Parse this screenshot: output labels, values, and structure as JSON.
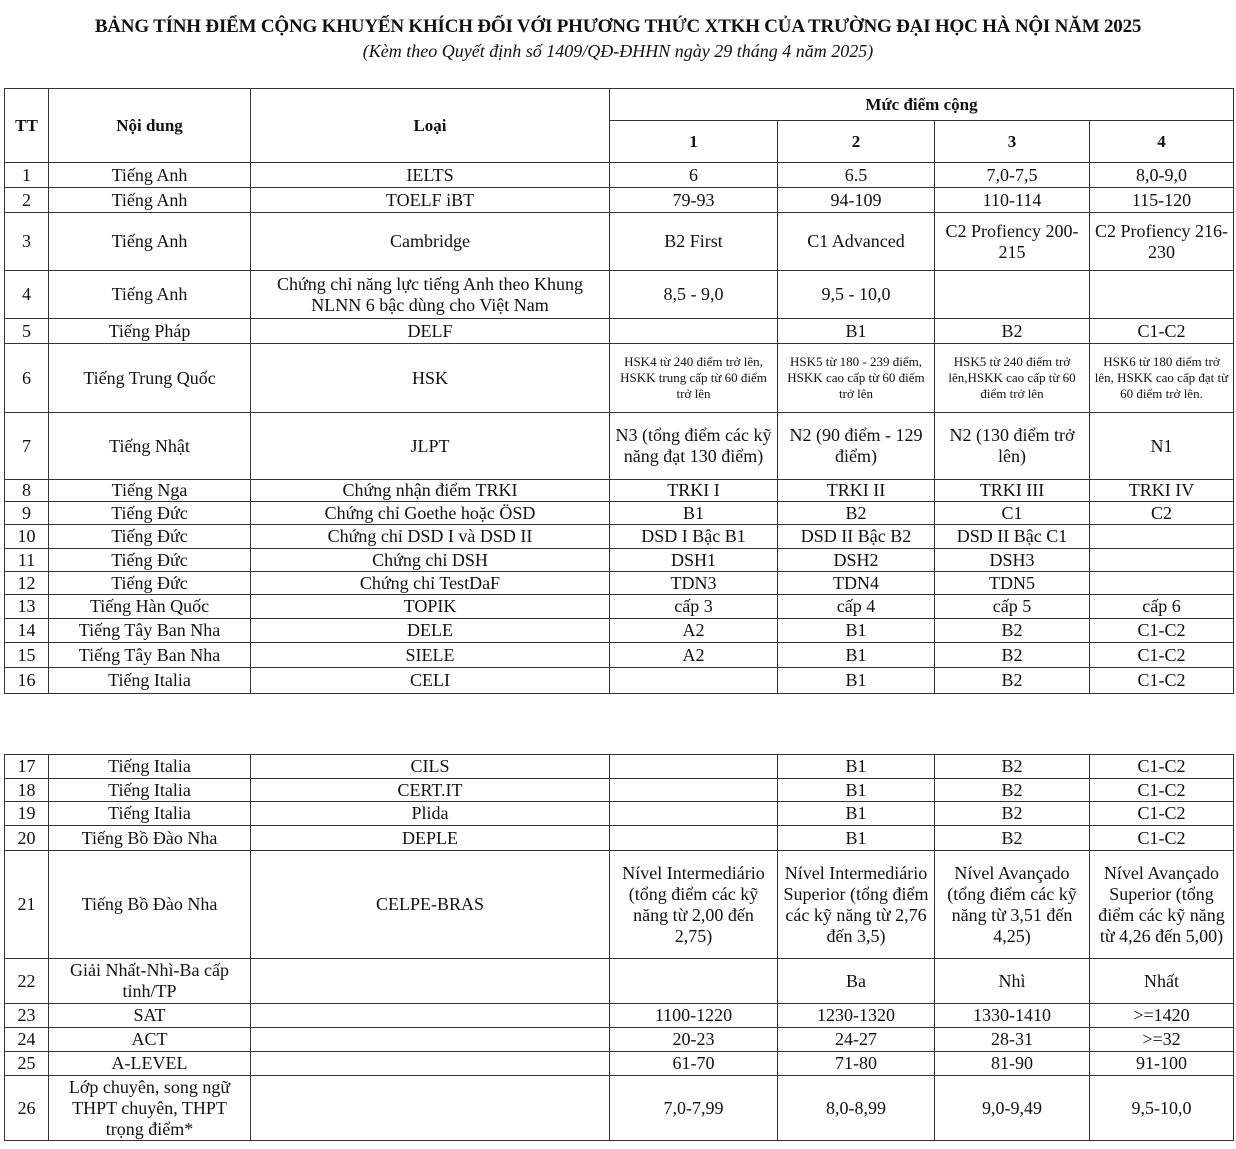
{
  "title": "BẢNG TÍNH ĐIỂM CỘNG KHUYẾN KHÍCH ĐỐI VỚI PHƯƠNG THỨC XTKH CỦA TRƯỜNG ĐẠI HỌC HÀ NỘI NĂM 2025",
  "subtitle": "(Kèm theo Quyết định số 1409/QĐ-ĐHHN ngày 29 tháng 4 năm 2025)",
  "header": {
    "tt": "TT",
    "noi_dung": "Nội dung",
    "loai": "Loại",
    "muc_diem_cong": "Mức điểm cộng",
    "levels": [
      "1",
      "2",
      "3",
      "4"
    ]
  },
  "table1": [
    [
      "1",
      "Tiếng Anh",
      "IELTS",
      "6",
      "6.5",
      "7,0-7,5",
      "8,0-9,0"
    ],
    [
      "2",
      "Tiếng Anh",
      "TOELF iBT",
      "79-93",
      "94-109",
      "110-114",
      "115-120"
    ],
    [
      "3",
      "Tiếng Anh",
      "Cambridge",
      "B2 First",
      "C1 Advanced",
      "C2 Profiency 200-215",
      "C2 Profiency 216-230"
    ],
    [
      "4",
      "Tiếng Anh",
      "Chứng chỉ năng lực tiếng Anh theo Khung NLNN 6 bậc dùng cho Việt Nam",
      "8,5 - 9,0",
      "9,5 - 10,0",
      "",
      ""
    ],
    [
      "5",
      "Tiếng Pháp",
      "DELF",
      "",
      "B1",
      "B2",
      "C1-C2"
    ],
    [
      "6",
      "Tiếng Trung Quốc",
      "HSK",
      "HSK4 từ 240 điểm trở lên, HSKK trung cấp từ 60 điểm trở lên",
      "HSK5 từ 180 - 239 điểm, HSKK cao cấp từ 60 điểm trở lên",
      "HSK5 từ 240 điểm trở lên,HSKK cao cấp từ 60 điểm trở lên",
      "HSK6 từ 180 điểm trở lên, HSKK cao cấp đạt từ 60 điểm trở lên."
    ],
    [
      "7",
      "Tiếng Nhật",
      "JLPT",
      "N3 (tổng điểm các kỹ năng đạt 130 điểm)",
      "N2 (90 điểm - 129 điểm)",
      "N2 (130 điểm trở lên)",
      "N1"
    ],
    [
      "8",
      "Tiếng Nga",
      "Chứng nhận điểm TRKI",
      "TRKI I",
      "TRKI II",
      "TRKI III",
      "TRKI IV"
    ],
    [
      "9",
      "Tiếng Đức",
      "Chứng chỉ  Goethe hoặc ÖSD",
      "B1",
      "B2",
      "C1",
      "C2"
    ],
    [
      "10",
      "Tiếng Đức",
      "Chứng chỉ DSD I và DSD II",
      "DSD I  Bậc B1",
      "DSD II  Bậc B2",
      "DSD II Bậc C1",
      ""
    ],
    [
      "11",
      "Tiếng Đức",
      "Chứng chỉ DSH",
      "DSH1",
      "DSH2",
      "DSH3",
      ""
    ],
    [
      "12",
      "Tiếng Đức",
      "Chứng chỉ TestDaF",
      "TDN3",
      "TDN4",
      "TDN5",
      ""
    ],
    [
      "13",
      "Tiếng Hàn Quốc",
      "TOPIK",
      "cấp 3",
      "cấp 4",
      "cấp 5",
      "cấp 6"
    ],
    [
      "14",
      "Tiếng Tây Ban Nha",
      "DELE",
      "A2",
      "B1",
      "B2",
      "C1-C2"
    ],
    [
      "15",
      "Tiếng Tây Ban Nha",
      "SIELE",
      "A2",
      "B1",
      "B2",
      "C1-C2"
    ],
    [
      "16",
      "Tiếng Italia",
      "CELI",
      "",
      "B1",
      "B2",
      "C1-C2"
    ]
  ],
  "table2": [
    [
      "17",
      "Tiếng Italia",
      "CILS",
      "",
      "B1",
      "B2",
      "C1-C2"
    ],
    [
      "18",
      "Tiếng Italia",
      "CERT.IT",
      "",
      "B1",
      "B2",
      "C1-C2"
    ],
    [
      "19",
      "Tiếng Italia",
      "Plida",
      "",
      "B1",
      "B2",
      "C1-C2"
    ],
    [
      "20",
      "Tiếng Bồ Đào Nha",
      "DEPLE",
      "",
      "B1",
      "B2",
      "C1-C2"
    ],
    [
      "21",
      "Tiếng Bồ Đào Nha",
      "CELPE-BRAS",
      "Nível Intermediário (tổng điểm các kỹ năng từ 2,00 đến 2,75)",
      "Nível Intermediário Superior (tổng điểm các kỹ năng từ 2,76 đến 3,5)",
      "Nível Avançado (tổng điểm các kỹ năng từ 3,51 đến 4,25)",
      "Nível Avançado Superior (tổng điểm các kỹ năng từ 4,26 đến 5,00)"
    ],
    [
      "22",
      "Giải Nhất-Nhì-Ba cấp tỉnh/TP",
      "",
      "",
      "Ba",
      "Nhì",
      "Nhất"
    ],
    [
      "23",
      "SAT",
      "",
      "1100-1220",
      "1230-1320",
      "1330-1410",
      ">=1420"
    ],
    [
      "24",
      "ACT",
      "",
      "20-23",
      "24-27",
      "28-31",
      ">=32"
    ],
    [
      "25",
      "A-LEVEL",
      "",
      "61-70",
      "71-80",
      "81-90",
      "91-100"
    ],
    [
      "26",
      "Lớp chuyên, song ngữ THPT chuyên, THPT trọng điểm*",
      "",
      "7,0-7,99",
      "8,0-8,99",
      "9,0-9,49",
      "9,5-10,0"
    ]
  ]
}
